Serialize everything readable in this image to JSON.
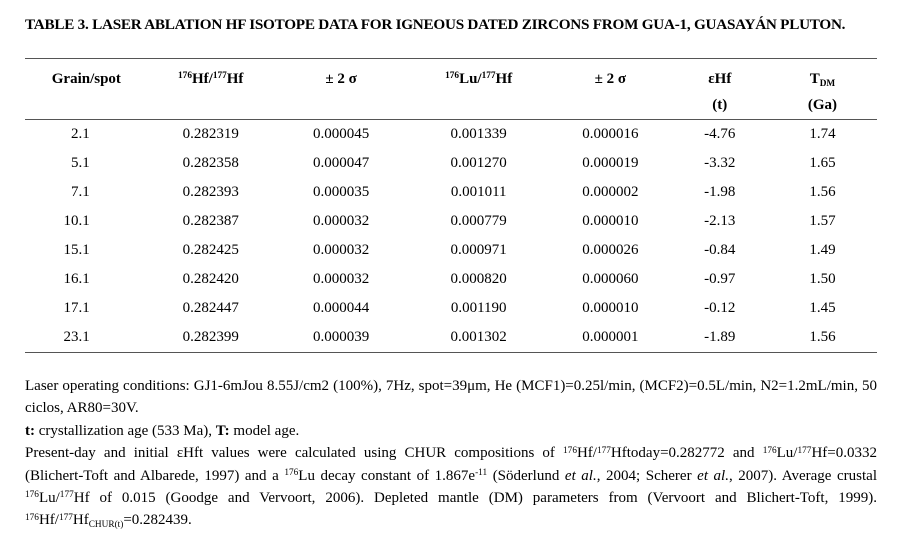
{
  "page": {
    "background_color": "#ffffff",
    "text_color": "#000000",
    "rule_color": "#555555"
  },
  "title": "TABLE 3. LASER ABLATION HF ISOTOPE DATA FOR IGNEOUS DATED ZIRCONS FROM GUA-1, GUASAYÁN PLUTON.",
  "table": {
    "columns": [
      {
        "id": "grain_spot",
        "label": [
          {
            "t": "Grain/spot"
          }
        ],
        "label2": []
      },
      {
        "id": "hf176_177",
        "label": [
          {
            "sup": "176"
          },
          {
            "t": "Hf/"
          },
          {
            "sup": "177"
          },
          {
            "t": "Hf"
          }
        ],
        "label2": []
      },
      {
        "id": "sigma_hf",
        "label": [
          {
            "t": "± 2 σ"
          }
        ],
        "label2": []
      },
      {
        "id": "lu176_177",
        "label": [
          {
            "sup": "176"
          },
          {
            "t": "Lu/"
          },
          {
            "sup": "177"
          },
          {
            "t": "Hf"
          }
        ],
        "label2": []
      },
      {
        "id": "sigma_lu",
        "label": [
          {
            "t": "± 2 σ"
          }
        ],
        "label2": []
      },
      {
        "id": "ehf",
        "label": [
          {
            "t": "εHf"
          }
        ],
        "label2": [
          {
            "t": "(t)"
          }
        ]
      },
      {
        "id": "tdm",
        "label": [
          {
            "t": "T"
          },
          {
            "sub": "DM"
          }
        ],
        "label2": [
          {
            "t": "(Ga)"
          }
        ]
      }
    ],
    "rows": [
      [
        "2.1",
        "0.282319",
        "0.000045",
        "0.001339",
        "0.000016",
        "-4.76",
        "1.74"
      ],
      [
        "5.1",
        "0.282358",
        "0.000047",
        "0.001270",
        "0.000019",
        "-3.32",
        "1.65"
      ],
      [
        "7.1",
        "0.282393",
        "0.000035",
        "0.001011",
        "0.000002",
        "-1.98",
        "1.56"
      ],
      [
        "10.1",
        "0.282387",
        "0.000032",
        "0.000779",
        "0.000010",
        "-2.13",
        "1.57"
      ],
      [
        "15.1",
        "0.282425",
        "0.000032",
        "0.000971",
        "0.000026",
        "-0.84",
        "1.49"
      ],
      [
        "16.1",
        "0.282420",
        "0.000032",
        "0.000820",
        "0.000060",
        "-0.97",
        "1.50"
      ],
      [
        "17.1",
        "0.282447",
        "0.000044",
        "0.001190",
        "0.000010",
        "-0.12",
        "1.45"
      ],
      [
        "23.1",
        "0.282399",
        "0.000039",
        "0.001302",
        "0.000001",
        "-1.89",
        "1.56"
      ]
    ]
  },
  "footnotes": [
    {
      "id": "laser-conditions",
      "segments": [
        {
          "t": "Laser operating conditions: GJ1-6mJou 8.55J/cm2 (100%), 7Hz, spot=39μm, He (MCF1)=0.25l/min, (MCF2)=0.5L/min, N2=1.2mL/min, 50 ciclos, AR80=30V."
        }
      ]
    },
    {
      "id": "age-definitions",
      "segments": [
        {
          "b": "t:"
        },
        {
          "t": " crystallization age (533 Ma), "
        },
        {
          "b": "T:"
        },
        {
          "t": " model age."
        }
      ]
    },
    {
      "id": "chur-parameters",
      "segments": [
        {
          "t": "Present-day and initial εHft values were calculated using CHUR compositions of "
        },
        {
          "sup": "176"
        },
        {
          "t": "Hf/"
        },
        {
          "sup": "177"
        },
        {
          "t": "Hftoday=0.282772 and "
        },
        {
          "sup": "176"
        },
        {
          "t": "Lu/"
        },
        {
          "sup": "177"
        },
        {
          "t": "Hf=0.0332 (Blichert-Toft and Albarede, 1997) and a "
        },
        {
          "sup": "176"
        },
        {
          "t": "Lu decay constant of 1.867e"
        },
        {
          "sup": "-11"
        },
        {
          "t": " (Söderlund "
        },
        {
          "i": "et al."
        },
        {
          "t": ", 2004; Scherer "
        },
        {
          "i": "et al."
        },
        {
          "t": ", 2007). Average crustal "
        },
        {
          "sup": "176"
        },
        {
          "t": "Lu/"
        },
        {
          "sup": "177"
        },
        {
          "t": "Hf of 0.015 (Goodge and Vervoort, 2006). Depleted mantle (DM) parameters from (Vervoort and Blichert-Toft, 1999). "
        },
        {
          "sup": "176"
        },
        {
          "t": "Hf/"
        },
        {
          "sup": "177"
        },
        {
          "t": "Hf"
        },
        {
          "sub": "CHUR(t)"
        },
        {
          "t": "=0.282439."
        }
      ]
    }
  ]
}
